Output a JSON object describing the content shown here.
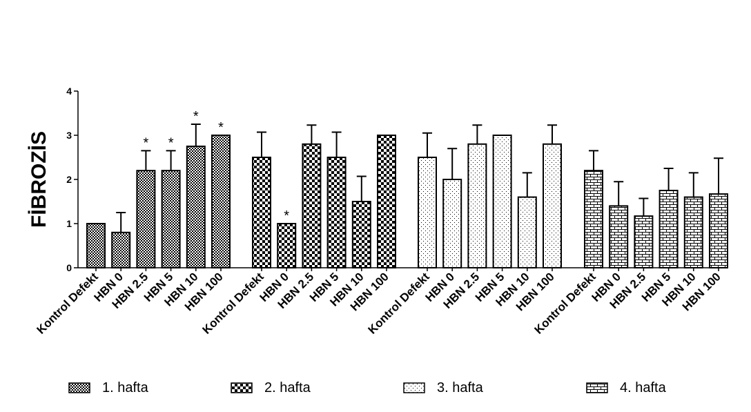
{
  "chart_data": {
    "type": "bar",
    "y_label": "FİBROZİS",
    "categories": [
      "Kontrol Defekt",
      "HBN 0",
      "HBN 2.5",
      "HBN 5",
      "HBN 10",
      "HBN 100"
    ],
    "ylim": [
      0,
      4
    ],
    "yticks": [
      0,
      1,
      2,
      3,
      4
    ],
    "series": [
      {
        "name": "1. hafta",
        "color": "#000000",
        "pattern": "fine-check",
        "values": [
          1,
          0.8,
          2.2,
          2.2,
          2.75,
          3
        ],
        "errors": [
          0,
          0.45,
          0.45,
          0.45,
          0.5,
          0
        ],
        "annotations": [
          null,
          null,
          "*",
          "*",
          "*",
          "*"
        ]
      },
      {
        "name": "2. hafta",
        "color": "#000000",
        "pattern": "coarse-check",
        "values": [
          2.5,
          1,
          2.8,
          2.5,
          1.5,
          3
        ],
        "errors": [
          0.57,
          0,
          0.43,
          0.57,
          0.57,
          0
        ],
        "annotations": [
          null,
          "*",
          null,
          null,
          null,
          null
        ]
      },
      {
        "name": "3. hafta",
        "color": "#000000",
        "pattern": "dots",
        "values": [
          2.5,
          2,
          2.8,
          3,
          1.6,
          2.8
        ],
        "errors": [
          0.55,
          0.7,
          0.43,
          0,
          0.55,
          0.43
        ],
        "annotations": [
          null,
          null,
          null,
          null,
          null,
          null
        ]
      },
      {
        "name": "4. hafta",
        "color": "#000000",
        "pattern": "brick",
        "values": [
          2.2,
          1.4,
          1.17,
          1.75,
          1.6,
          1.67
        ],
        "errors": [
          0.45,
          0.55,
          0.4,
          0.5,
          0.55,
          0.81
        ],
        "annotations": [
          null,
          null,
          null,
          null,
          null,
          null
        ]
      }
    ]
  }
}
